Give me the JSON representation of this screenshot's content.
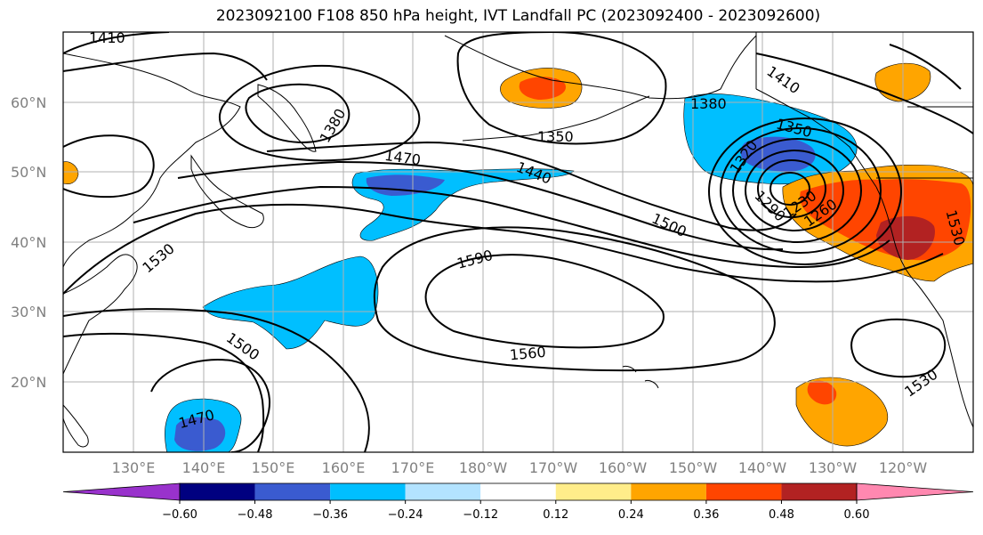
{
  "title": "2023092100 F108 850 hPa height, IVT Landfall PC (2023092400 - 2023092600)",
  "map": {
    "lat_labels": [
      {
        "text": "60°N",
        "lat": 60
      },
      {
        "text": "50°N",
        "lat": 50
      },
      {
        "text": "40°N",
        "lat": 40
      },
      {
        "text": "30°N",
        "lat": 30
      },
      {
        "text": "20°N",
        "lat": 20
      }
    ],
    "lon_labels": [
      {
        "text": "130°E",
        "lon": 130
      },
      {
        "text": "140°E",
        "lon": 140
      },
      {
        "text": "150°E",
        "lon": 150
      },
      {
        "text": "160°E",
        "lon": 160
      },
      {
        "text": "170°E",
        "lon": 170
      },
      {
        "text": "180°W",
        "lon": 180
      },
      {
        "text": "170°W",
        "lon": 190
      },
      {
        "text": "160°W",
        "lon": 200
      },
      {
        "text": "150°W",
        "lon": 210
      },
      {
        "text": "140°W",
        "lon": 220
      },
      {
        "text": "130°W",
        "lon": 230
      },
      {
        "text": "120°W",
        "lon": 240
      }
    ],
    "contour_labels": [
      "1410",
      "1380",
      "1350",
      "1470",
      "1440",
      "1500",
      "1530",
      "1590",
      "1560",
      "1320",
      "1290",
      "1260",
      "1230",
      "1410",
      "1530",
      "1500",
      "1470",
      "1530",
      "1380",
      "1350"
    ],
    "colors": {
      "neg_060": "#9932cc",
      "neg_048": "#000080",
      "neg_036": "#3a5bd0",
      "neg_024": "#00bfff",
      "neg_012": "#b3e3ff",
      "zero": "#ffffff",
      "pos_012": "#ffed8a",
      "pos_024": "#ffa500",
      "pos_036": "#ff4500",
      "pos_048": "#b22222",
      "pos_060": "#ff88b0"
    }
  },
  "colorbar": {
    "ticks": [
      "−0.60",
      "−0.48",
      "−0.36",
      "−0.24",
      "−0.12",
      "0.12",
      "0.24",
      "0.36",
      "0.48",
      "0.60"
    ],
    "segment_colors": [
      "#9932cc",
      "#000080",
      "#3a5bd0",
      "#00bfff",
      "#b3e3ff",
      "#ffffff",
      "#ffed8a",
      "#ffa500",
      "#ff4500",
      "#b22222",
      "#ff88b0"
    ]
  }
}
